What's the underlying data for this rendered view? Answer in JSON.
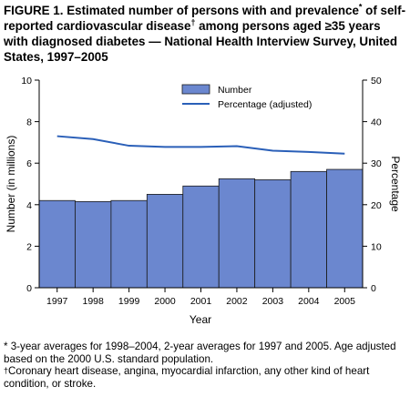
{
  "figure": {
    "title_part1": "FIGURE 1. Estimated number of persons with and prevalence",
    "title_sup1": "*",
    "title_part2": " of self-reported cardiovascular disease",
    "title_sup2": "†",
    "title_part3": " among persons aged ≥35 years with diagnosed diabetes — National Health Interview Survey, United States, 1997–2005"
  },
  "footnotes": {
    "star_symbol": "*",
    "star_text": " 3-year averages for 1998–2004, 2-year averages for 1997 and 2005. Age adjusted based on the 2000 U.S. standard population.",
    "dagger_symbol": "†",
    "dagger_text": "Coronary heart disease, angina, myocardial infarction, any other kind of heart condition, or stroke."
  },
  "colors": {
    "bar_fill": "#6b87cf",
    "bar_stroke": "#1a1a1a",
    "line": "#2a5fb8"
  },
  "chart_data": {
    "type": "bar",
    "categories": [
      "1997",
      "1998",
      "1999",
      "2000",
      "2001",
      "2002",
      "2003",
      "2004",
      "2005"
    ],
    "series": [
      {
        "name": "Number",
        "type": "bar",
        "axis": "left",
        "values": [
          4.2,
          4.15,
          4.2,
          4.5,
          4.9,
          5.25,
          5.2,
          5.6,
          5.7
        ]
      },
      {
        "name": "Percentage (adjusted)",
        "type": "line",
        "axis": "right",
        "values": [
          36.5,
          35.8,
          34.2,
          33.9,
          33.9,
          34.1,
          33.0,
          32.7,
          32.3
        ]
      }
    ],
    "xlabel": "Year",
    "ylabel": "Number (in millions)",
    "ylabel_right": "Percentage",
    "ylim": [
      0,
      10
    ],
    "ylim_right": [
      0,
      50
    ],
    "yticks": [
      "0",
      "2",
      "4",
      "6",
      "8",
      "10"
    ],
    "yticks_right": [
      "0",
      "10",
      "20",
      "30",
      "40",
      "50"
    ],
    "grid": false,
    "legend_position": "top-center"
  }
}
